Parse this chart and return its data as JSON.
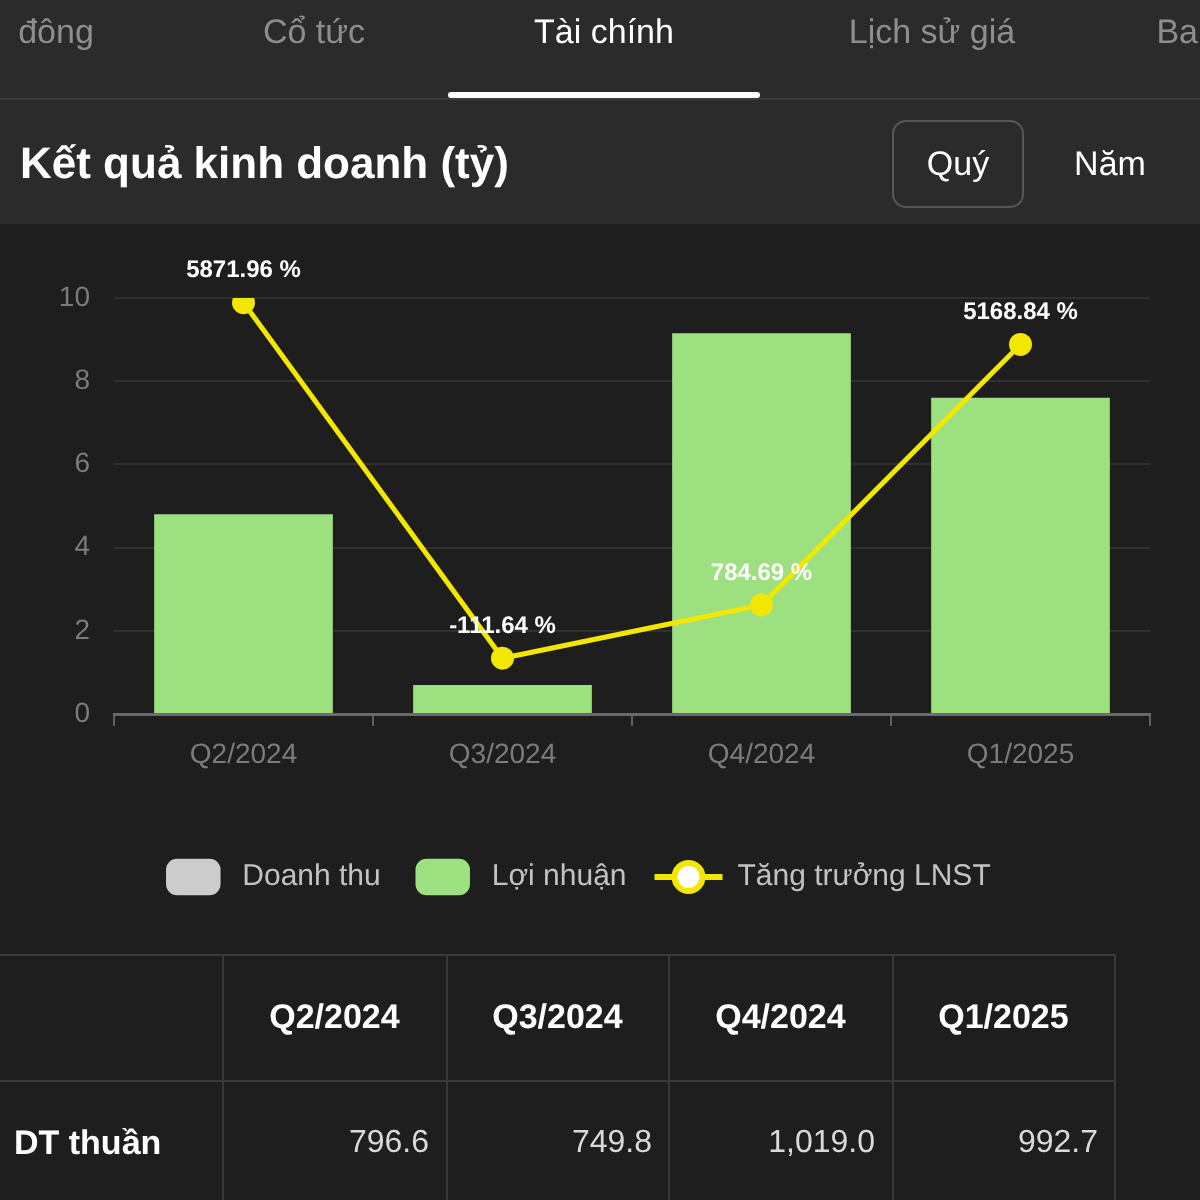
{
  "chart_data": [
    {
      "type": "bar",
      "title": "Kết quả kinh doanh (tỷ)",
      "annotations": [
        "đông",
        "Cổ tức",
        "Tài chính",
        "Lịch sử giá",
        "Ba",
        "Quý",
        "Năm"
      ],
      "categories": [
        "Q2/2024",
        "Q3/2024",
        "Q4/2024",
        "Q1/2025"
      ],
      "series": [
        {
          "name": "Doanh thu",
          "color": "#cccccc",
          "values": [
            null,
            null,
            null,
            null
          ]
        },
        {
          "name": "Lợi nhuận",
          "color": "#9de07f",
          "values": [
            4.8,
            0.7,
            9.15,
            7.6
          ]
        },
        {
          "name": "Tăng trưởng LNST",
          "type": "line",
          "axis": "y2",
          "color": "#f3e600",
          "values": [
            5871.96,
            -111.64,
            784.69,
            5168.84
          ],
          "value_labels": [
            "5871.96 %",
            "-111.64 %",
            "784.69 %",
            "5168.84 %"
          ]
        }
      ],
      "ylim": [
        0,
        10
      ],
      "yticks": [
        0,
        2,
        4,
        6,
        8,
        10
      ],
      "y2lim": [
        -1050,
        5950
      ],
      "grid": "y",
      "legend": "bottom",
      "marker": "circle"
    },
    {
      "type": "other",
      "categories": [
        "Q2/2024",
        "Q3/2024",
        "Q4/2024",
        "Q1/2025"
      ],
      "series": [
        {
          "name": "DT thuần",
          "values": [
            796.6,
            749.8,
            1019.0,
            992.7
          ],
          "value_labels": [
            "796.6",
            "749.8",
            "1,019.0",
            "992.7"
          ]
        }
      ],
      "data_labels": true
    }
  ]
}
